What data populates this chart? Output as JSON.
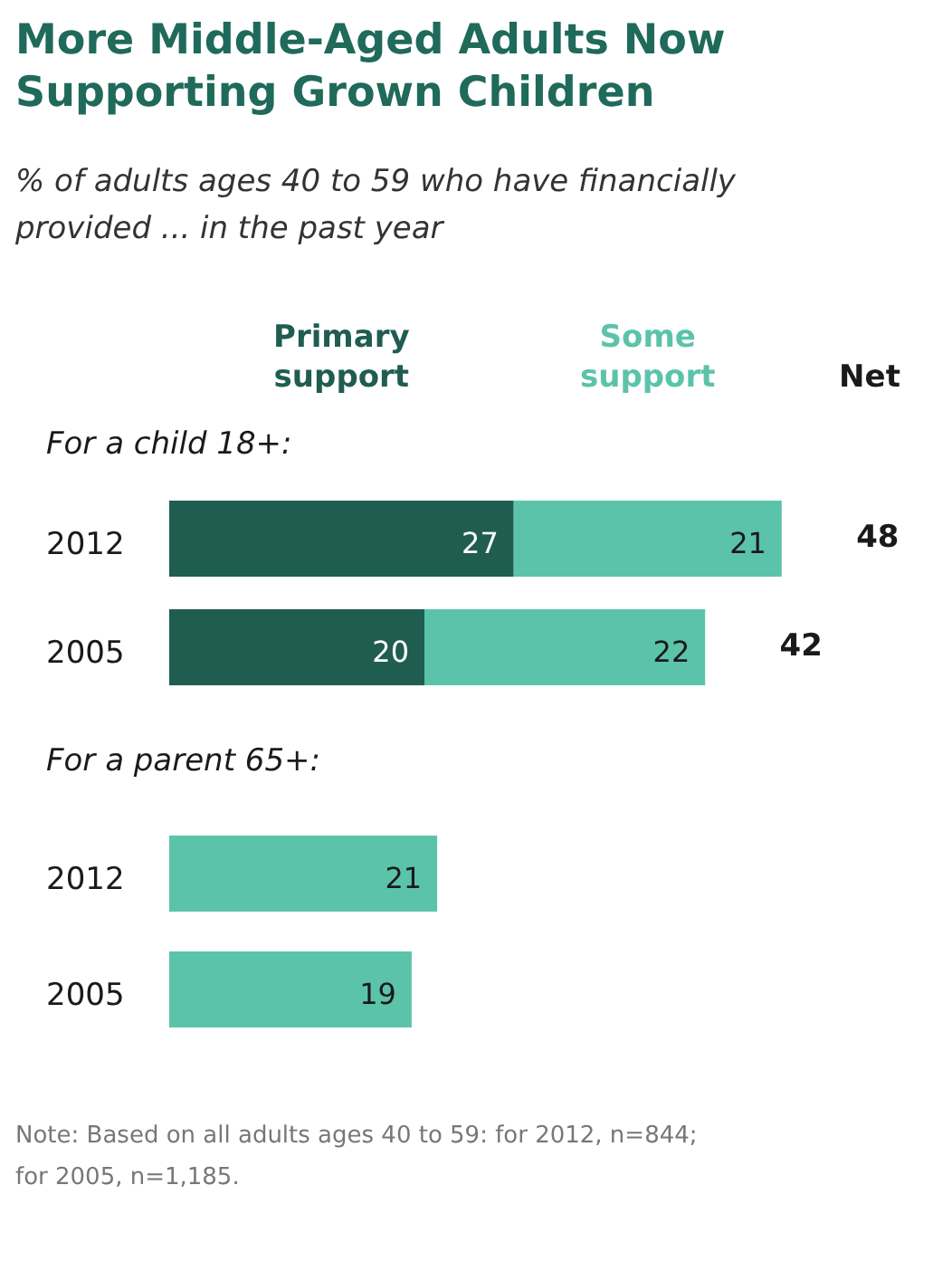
{
  "chart_data": {
    "type": "bar",
    "orientation": "horizontal",
    "stacked": true,
    "title": "More Middle-Aged Adults Now Supporting Grown Children",
    "subtitle": "% of adults ages 40 to 59 who have financially provided ... in the past year",
    "categories": [
      "2012",
      "2005",
      "2012",
      "2005"
    ],
    "series": [
      {
        "name": "Primary support",
        "color": "#1f5d50",
        "values": [
          27,
          20,
          null,
          null
        ]
      },
      {
        "name": "Some support",
        "color": "#5cc3ab",
        "values": [
          21,
          22,
          21,
          19
        ]
      }
    ],
    "data_labels": true,
    "totals": [
      "48",
      "42",
      null,
      null
    ],
    "legend_title": "Net",
    "legend": "top",
    "annotations": [
      "For a child 18+:",
      "For a parent 65+:",
      "Note: Based on all adults ages 40 to 59: for 2012, n=844; for 2005, n=1,185."
    ]
  }
}
